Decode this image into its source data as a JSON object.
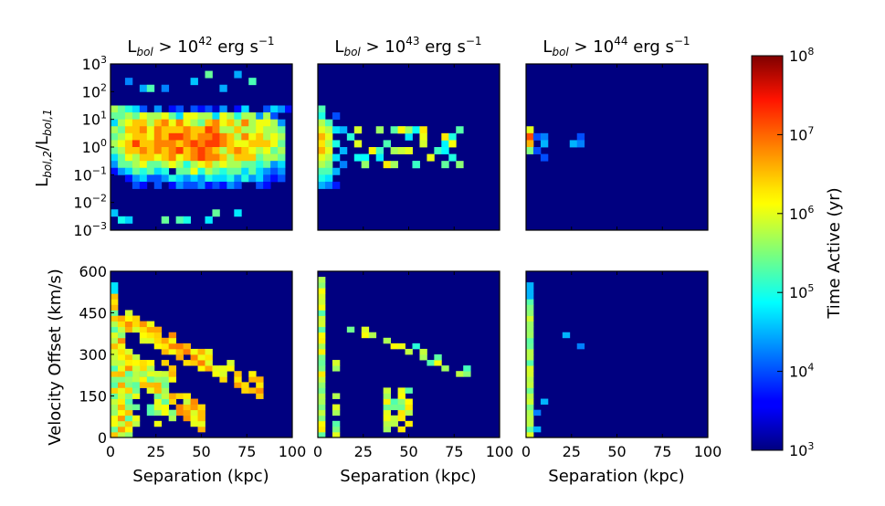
{
  "chart_data": {
    "type": "heatmap",
    "colormap": "jet",
    "panel_titles": [
      {
        "prefix": "L",
        "sub": "bol",
        "mid": " > 10",
        "exp": "42",
        "suffix": " erg s",
        "suffix_exp": "−1"
      },
      {
        "prefix": "L",
        "sub": "bol",
        "mid": " > 10",
        "exp": "43",
        "suffix": " erg s",
        "suffix_exp": "−1"
      },
      {
        "prefix": "L",
        "sub": "bol",
        "mid": " > 10",
        "exp": "44",
        "suffix": " erg s",
        "suffix_exp": "−1"
      }
    ],
    "x": {
      "label": "Separation (kpc)",
      "range": [
        0,
        100
      ],
      "ticks": [
        "0",
        "25",
        "50",
        "75",
        "100"
      ]
    },
    "top_y": {
      "label_parts": [
        {
          "t": "L"
        },
        {
          "t": "bol,2",
          "sub": true
        },
        {
          "t": "/L"
        },
        {
          "t": "bol,1",
          "sub": true
        }
      ],
      "scale": "log",
      "range_exp": [
        -3,
        3
      ],
      "ticks": [
        {
          "b": "10",
          "e": "3"
        },
        {
          "b": "10",
          "e": "2"
        },
        {
          "b": "10",
          "e": "1"
        },
        {
          "b": "10",
          "e": "0"
        },
        {
          "b": "10",
          "e": "−1"
        },
        {
          "b": "10",
          "e": "−2"
        },
        {
          "b": "10",
          "e": "−3"
        }
      ]
    },
    "bottom_y": {
      "label": "Velocity Offset (km/s)",
      "range": [
        0,
        600
      ],
      "ticks": [
        "600",
        "450",
        "300",
        "150",
        "0"
      ]
    },
    "colorbar": {
      "label": "Time Active (yr)",
      "scale": "log",
      "range_exp": [
        3,
        8
      ],
      "ticks": [
        {
          "b": "10",
          "e": "8"
        },
        {
          "b": "10",
          "e": "7"
        },
        {
          "b": "10",
          "e": "6"
        },
        {
          "b": "10",
          "e": "5"
        },
        {
          "b": "10",
          "e": "4"
        },
        {
          "b": "10",
          "e": "3"
        }
      ]
    },
    "grid_bins": {
      "x_bins": 25,
      "x_bin_width_kpc": 4,
      "y_bins": 30
    },
    "panels_top": [
      "...........................",
      "..........................",
      "HGFEC.D.BC.CBCAD.BE..CEDB",
      "GGHGIHHIGEIIHHEIHFHHDHC..",
      "EHIJJHJKIKIHGJKIJHKHIIHD",
      "HGJJKIKJJJKJJLKHHJHHIHHG",
      "GHIJJIKJLLKJKKLKJHKIJHIH",
      "HIJLJJKKKJKLKLLKJIIJJJIG",
      "GHJJKJKJKLJKLKJHJKJIHIGH",
      "EGIHJJIJKIJKLKKJHJJJGHHG",
      "DGGHIGGHIHFHIJHIHHGGFGDE",
      "BDEGFGEF.GGIFHGFGGEGEDCD",
      "..BDECCDFEDEDFEEFDFDECBC",
      "...CB.C.BDCCDBCBDC..CB.."
    ]
  }
}
